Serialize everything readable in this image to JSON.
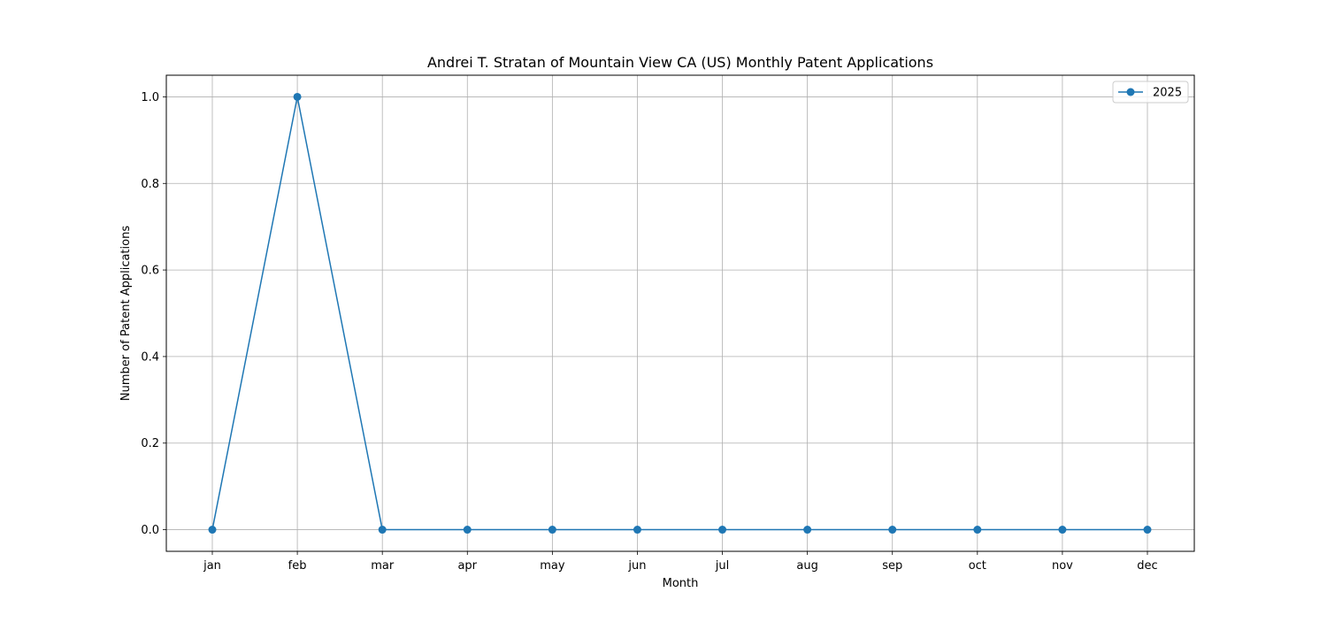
{
  "chart_data": {
    "type": "line",
    "title": "Andrei T. Stratan of Mountain View CA (US) Monthly Patent Applications",
    "xlabel": "Month",
    "ylabel": "Number of Patent Applications",
    "categories": [
      "jan",
      "feb",
      "mar",
      "apr",
      "may",
      "jun",
      "jul",
      "aug",
      "sep",
      "oct",
      "nov",
      "dec"
    ],
    "series": [
      {
        "name": "2025",
        "values": [
          0,
          1,
          0,
          0,
          0,
          0,
          0,
          0,
          0,
          0,
          0,
          0
        ],
        "color": "#1f77b4",
        "marker": "circle"
      }
    ],
    "ylim": [
      -0.05,
      1.05
    ],
    "yticks": [
      0.0,
      0.2,
      0.4,
      0.6,
      0.8,
      1.0
    ],
    "ytick_labels": [
      "0.0",
      "0.2",
      "0.4",
      "0.6",
      "0.8",
      "1.0"
    ],
    "grid": true,
    "legend_position": "top-right"
  }
}
